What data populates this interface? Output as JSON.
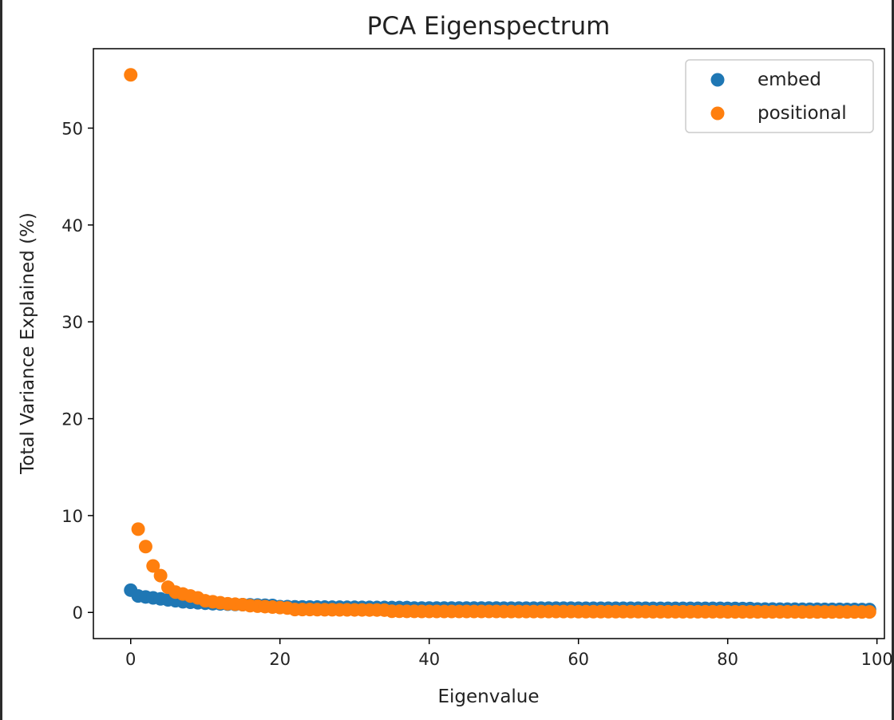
{
  "chart_data": {
    "type": "scatter",
    "title": "PCA Eigenspectrum",
    "xlabel": "Eigenvalue",
    "ylabel": "Total Variance Explained (%)",
    "xlim": [
      -5,
      101
    ],
    "ylim": [
      -2.7,
      58.2
    ],
    "xticks": [
      0,
      20,
      40,
      60,
      80,
      100
    ],
    "yticks": [
      0,
      10,
      20,
      30,
      40,
      50
    ],
    "grid": false,
    "legend_position": "top-right",
    "series": [
      {
        "name": "embed",
        "color": "#1f77b4",
        "values": [
          2.3,
          1.7,
          1.6,
          1.5,
          1.4,
          1.3,
          1.2,
          1.1,
          1.05,
          1.0,
          0.95,
          0.9,
          0.88,
          0.85,
          0.82,
          0.8,
          0.78,
          0.76,
          0.74,
          0.72,
          0.6,
          0.6,
          0.58,
          0.57,
          0.56,
          0.55,
          0.55,
          0.54,
          0.54,
          0.53,
          0.53,
          0.52,
          0.52,
          0.51,
          0.51,
          0.5,
          0.5,
          0.5,
          0.45,
          0.45,
          0.45,
          0.45,
          0.45,
          0.45,
          0.45,
          0.45,
          0.45,
          0.45,
          0.45,
          0.45,
          0.44,
          0.44,
          0.44,
          0.44,
          0.44,
          0.44,
          0.44,
          0.44,
          0.44,
          0.44,
          0.43,
          0.43,
          0.43,
          0.43,
          0.43,
          0.43,
          0.43,
          0.43,
          0.43,
          0.43,
          0.42,
          0.42,
          0.42,
          0.42,
          0.42,
          0.42,
          0.42,
          0.42,
          0.42,
          0.42,
          0.41,
          0.41,
          0.4,
          0.4,
          0.35,
          0.35,
          0.35,
          0.34,
          0.34,
          0.34,
          0.33,
          0.33,
          0.33,
          0.32,
          0.32,
          0.32,
          0.31,
          0.31,
          0.3,
          0.3
        ]
      },
      {
        "name": "positional",
        "color": "#ff7f0e",
        "values": [
          55.5,
          8.6,
          6.8,
          4.8,
          3.8,
          2.6,
          2.1,
          1.9,
          1.7,
          1.5,
          1.2,
          1.1,
          1.0,
          0.9,
          0.85,
          0.8,
          0.7,
          0.65,
          0.6,
          0.55,
          0.5,
          0.45,
          0.3,
          0.3,
          0.3,
          0.29,
          0.28,
          0.28,
          0.27,
          0.27,
          0.26,
          0.26,
          0.25,
          0.25,
          0.24,
          0.12,
          0.12,
          0.11,
          0.11,
          0.1,
          0.1,
          0.1,
          0.1,
          0.1,
          0.1,
          0.1,
          0.1,
          0.1,
          0.1,
          0.1,
          0.09,
          0.09,
          0.09,
          0.09,
          0.09,
          0.09,
          0.09,
          0.09,
          0.09,
          0.09,
          0.08,
          0.08,
          0.08,
          0.08,
          0.08,
          0.08,
          0.08,
          0.08,
          0.08,
          0.08,
          0.07,
          0.07,
          0.07,
          0.07,
          0.07,
          0.07,
          0.07,
          0.07,
          0.07,
          0.07,
          0.06,
          0.06,
          0.06,
          0.06,
          0.06,
          0.06,
          0.06,
          0.06,
          0.06,
          0.06,
          0.05,
          0.05,
          0.05,
          0.05,
          0.05,
          0.05,
          0.05,
          0.05,
          0.05,
          0.05
        ]
      }
    ]
  }
}
